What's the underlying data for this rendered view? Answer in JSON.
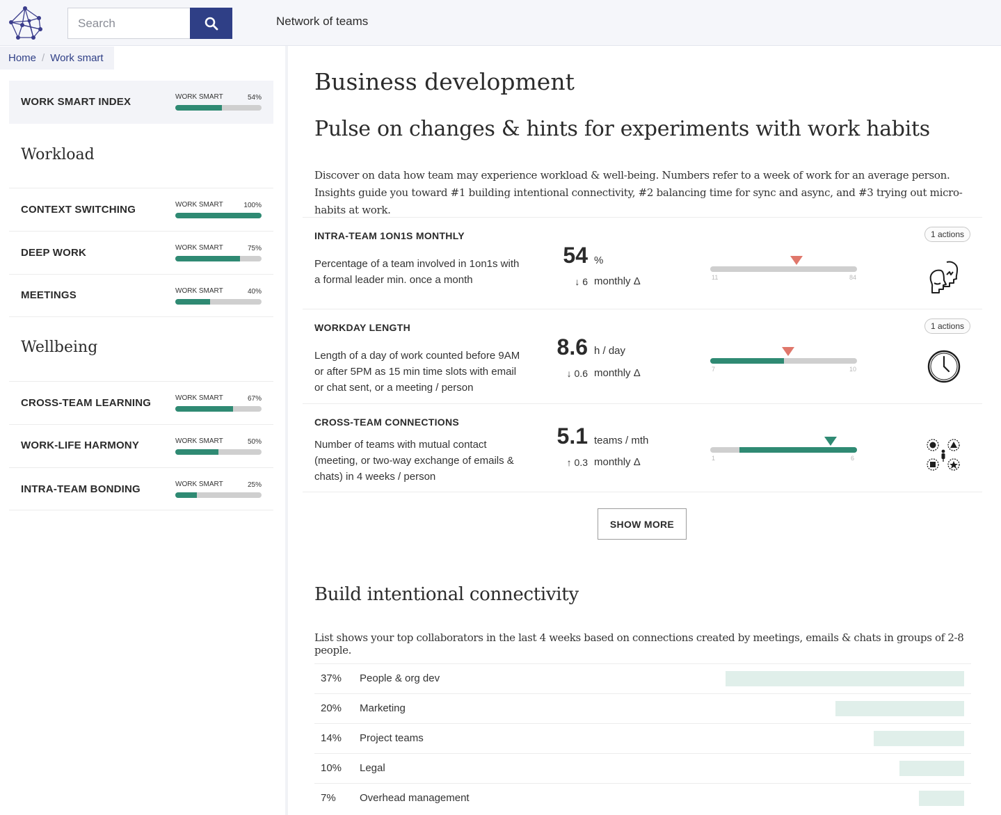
{
  "header": {
    "search_placeholder": "Search",
    "search_icon": "search-icon",
    "nav_label": "Network of teams",
    "accent_color": "#2f3f86"
  },
  "breadcrumb": {
    "home": "Home",
    "separator": "/",
    "current": "Work smart"
  },
  "sidebar": {
    "index": {
      "label": "WORK SMART INDEX",
      "tag": "WORK SMART",
      "value": "54%",
      "fraction": 0.54
    },
    "workload_heading": "Workload",
    "workload": [
      {
        "label": "CONTEXT SWITCHING",
        "tag": "WORK SMART",
        "value": "100%",
        "fraction": 1.0
      },
      {
        "label": "DEEP WORK",
        "tag": "WORK SMART",
        "value": "75%",
        "fraction": 0.75
      },
      {
        "label": "MEETINGS",
        "tag": "WORK SMART",
        "value": "40%",
        "fraction": 0.4
      }
    ],
    "wellbeing_heading": "Wellbeing",
    "wellbeing": [
      {
        "label": "CROSS-TEAM LEARNING",
        "tag": "WORK SMART",
        "value": "67%",
        "fraction": 0.67
      },
      {
        "label": "WORK-LIFE HARMONY",
        "tag": "WORK SMART",
        "value": "50%",
        "fraction": 0.5
      },
      {
        "label": "INTRA-TEAM BONDING",
        "tag": "WORK SMART",
        "value": "25%",
        "fraction": 0.25
      }
    ]
  },
  "main": {
    "title": "Business development",
    "subtitle": "Pulse on changes & hints for experiments with work habits",
    "intro": "Discover on data how team may experience workload & well-being. Numbers refer to a week of work for an average person. Insights guide you toward #1 building intentional connectivity, #2 balancing time for sync and async, and #3 trying out micro-habits at work.",
    "metrics": [
      {
        "title": "INTRA-TEAM 1ON1S MONTHLY",
        "description": "Percentage of a team involved in 1on1s with a formal leader min. once a month",
        "value": "54",
        "unit": "%",
        "delta": "↓ 6",
        "period": "monthly Δ",
        "range_min": "11",
        "range_max": "84",
        "fill_fraction": 0.0,
        "marker_fraction": 0.59,
        "marker_color": "#e0776b",
        "badge": "1 actions",
        "icon": "people-talking-icon"
      },
      {
        "title": "WORKDAY LENGTH",
        "description": "Length of a day of work counted before 9AM or after 5PM as 15 min time slots with email or chat sent, or a meeting / person",
        "value": "8.6",
        "unit": "h / day",
        "delta": "↓ 0.6",
        "period": "monthly Δ",
        "range_min": "7",
        "range_max": "10",
        "fill_fraction": 0.5,
        "marker_fraction": 0.53,
        "marker_color": "#e0776b",
        "badge": "1 actions",
        "icon": "clock-icon"
      },
      {
        "title": "CROSS-TEAM CONNECTIONS",
        "description": "Number of teams with mutual contact (meeting, or two-way exchange of emails & chats) in 4 weeks / person",
        "value": "5.1",
        "unit": "teams / mth",
        "delta": "↑ 0.3",
        "period": "monthly Δ",
        "range_min": "1",
        "range_max": "6",
        "fill_start": 0.2,
        "fill_fraction": 1.0,
        "marker_fraction": 0.82,
        "marker_color": "#2f8a73",
        "badge": "",
        "icon": "team-network-icon"
      }
    ],
    "show_more": "SHOW MORE",
    "connectivity_title": "Build intentional connectivity",
    "connectivity_desc": "List shows your top collaborators in the last 4 weeks based on connections created by meetings, emails & chats in groups of 2-8 people.",
    "collaborators": [
      {
        "pct": "37%",
        "name": "People & org dev",
        "fraction": 0.37
      },
      {
        "pct": "20%",
        "name": "Marketing",
        "fraction": 0.2
      },
      {
        "pct": "14%",
        "name": "Project teams",
        "fraction": 0.14
      },
      {
        "pct": "10%",
        "name": "Legal",
        "fraction": 0.1
      },
      {
        "pct": "7%",
        "name": "Overhead management",
        "fraction": 0.07
      }
    ]
  }
}
